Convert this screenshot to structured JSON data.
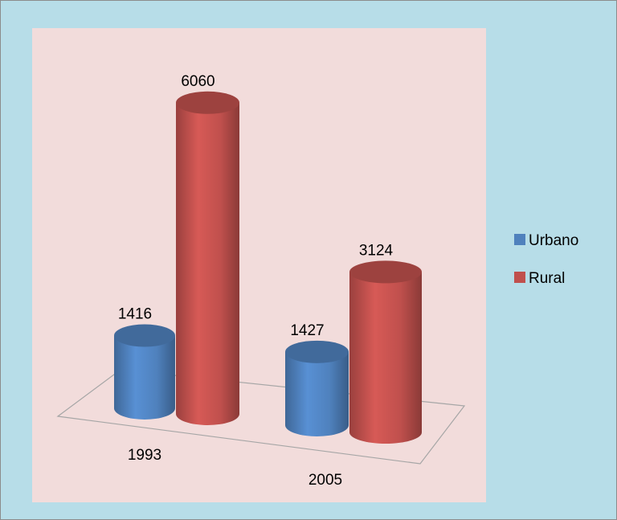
{
  "chart_data": {
    "type": "bar3d",
    "categories": [
      "1993",
      "2005"
    ],
    "series": [
      {
        "name": "Urbano",
        "color": "#4f81bd",
        "values": [
          1416,
          1427
        ]
      },
      {
        "name": "Rural",
        "color": "#c0504d",
        "values": [
          6060,
          3124
        ]
      }
    ],
    "legend": "right"
  }
}
